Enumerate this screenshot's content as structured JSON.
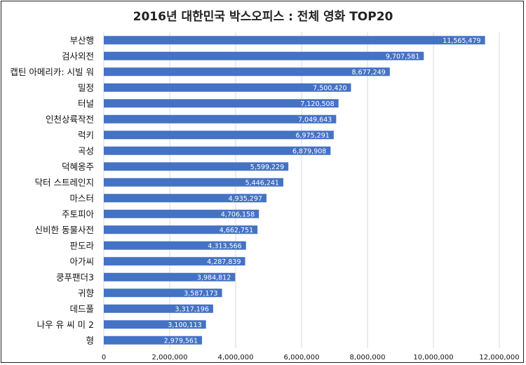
{
  "chart_data": {
    "type": "bar",
    "orientation": "horizontal",
    "title": "2016년 대한민국 박스오피스 : 전체 영화 TOP20",
    "xlabel": "",
    "ylabel": "",
    "xlim": [
      0,
      12000000
    ],
    "x_ticks": [
      "0",
      "2,000,000",
      "4,000,000",
      "6,000,000",
      "8,000,000",
      "10,000,000",
      "12,000,000"
    ],
    "grid": "vertical",
    "legend": "none",
    "bar_color": "#4472c4",
    "categories": [
      "부산행",
      "검사외전",
      "캡틴 아메리카: 시빌 워",
      "밀정",
      "터널",
      "인천상륙작전",
      "럭키",
      "곡성",
      "덕혜옹주",
      "닥터 스트레인지",
      "마스터",
      "주토피아",
      "신비한 동물사전",
      "판도라",
      "아가씨",
      "쿵푸팬더3",
      "귀향",
      "데드풀",
      "나우 유 씨 미 2",
      "형"
    ],
    "values": [
      11565479,
      9707581,
      8677249,
      7500420,
      7120508,
      7049643,
      6975291,
      6879908,
      5599229,
      5446241,
      4935297,
      4706158,
      4662751,
      4313566,
      4287839,
      3984812,
      3587173,
      3317196,
      3100113,
      2979561
    ],
    "data_labels": [
      "11,565,479",
      "9,707,581",
      "8,677,249",
      "7,500,420",
      "7,120,508",
      "7,049,643",
      "6,975,291",
      "6,879,908",
      "5,599,229",
      "5,446,241",
      "4,935,297",
      "4,706,158",
      "4,662,751",
      "4,313,566",
      "4,287,839",
      "3,984,812",
      "3,587,173",
      "3,317,196",
      "3,100,113",
      "2,979,561"
    ]
  }
}
